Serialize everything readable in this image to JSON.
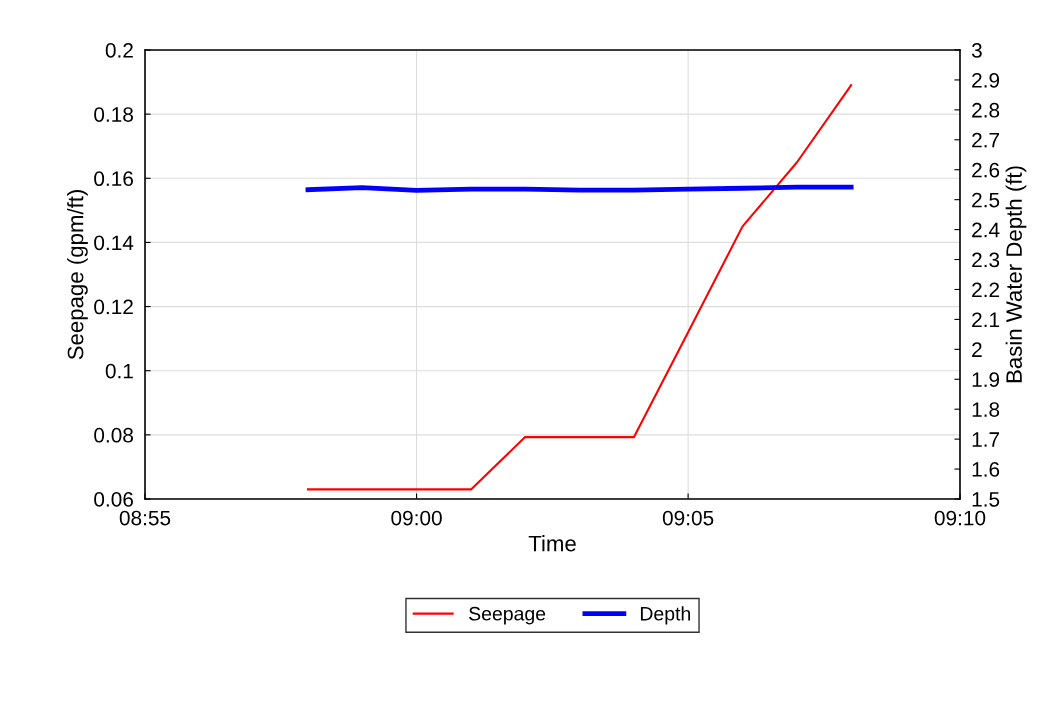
{
  "chart_data": {
    "type": "line",
    "xlabel": "Time",
    "ylabel": "Seepage (gpm/ft)",
    "y2label": "Basin Water Depth (ft)",
    "x": [
      8.9667,
      8.9833,
      9.0,
      9.0167,
      9.0333,
      9.05,
      9.0667,
      9.0833,
      9.1,
      9.1167,
      9.1333
    ],
    "series": [
      {
        "name": "Seepage",
        "color": "#ff0000",
        "values": [
          0.063,
          0.063,
          0.063,
          0.063,
          0.0793,
          0.0793,
          0.0793,
          0.112,
          0.145,
          0.165,
          0.189
        ]
      },
      {
        "name": "Depth",
        "color": "#0000ff",
        "axis": "y2",
        "values": [
          2.533,
          2.54,
          2.531,
          2.535,
          2.535,
          2.532,
          2.532,
          2.535,
          2.538,
          2.542,
          2.542
        ]
      }
    ],
    "xlim": [
      8.9167,
      9.1667
    ],
    "xticks": [
      {
        "value": 8.9167,
        "label": "08:55"
      },
      {
        "value": 9.0,
        "label": "09:00"
      },
      {
        "value": 9.0833,
        "label": "09:05"
      },
      {
        "value": 9.1667,
        "label": "09:10"
      }
    ],
    "ylim": [
      0.06,
      0.2
    ],
    "yticks": [
      0.06,
      0.08,
      0.1,
      0.12,
      0.14,
      0.16,
      0.18,
      0.2
    ],
    "y2lim": [
      1.5,
      3
    ],
    "y2ticks": [
      1.5,
      1.6,
      1.7,
      1.8,
      1.9,
      2,
      2.1,
      2.2,
      2.3,
      2.4,
      2.5,
      2.6,
      2.7,
      2.8,
      2.9,
      3
    ],
    "grid": true,
    "legend": "bottom"
  }
}
